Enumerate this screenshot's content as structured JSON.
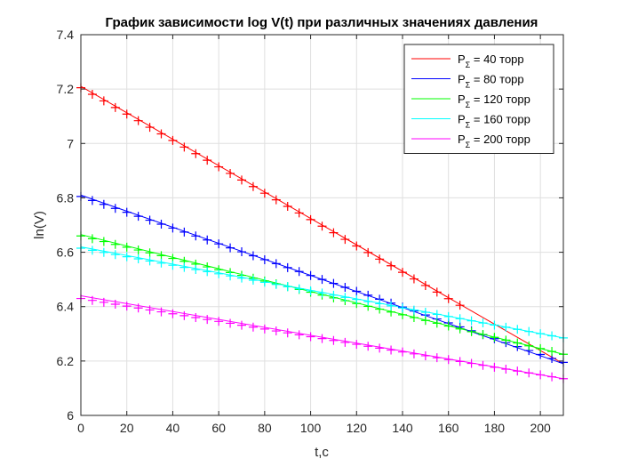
{
  "chart_data": {
    "type": "line",
    "title": "График зависимости log V(t) при различных значениях давления",
    "xlabel": "t,c",
    "ylabel": "ln(V)",
    "xlim": [
      0,
      210
    ],
    "ylim": [
      6,
      7.4
    ],
    "xticks": [
      "0",
      "20",
      "40",
      "60",
      "80",
      "100",
      "120",
      "140",
      "160",
      "180",
      "200"
    ],
    "yticks": [
      "6",
      "6.2",
      "6.4",
      "6.6",
      "6.8",
      "7",
      "7.2",
      "7.4"
    ],
    "grid": true,
    "legend_position": "top-right",
    "sample_interval": 5,
    "series": [
      {
        "name": "P",
        "subscript": "Σ",
        "value_text": " = 40 торр",
        "color": "#ff0000",
        "fit": {
          "x": [
            0,
            210
          ],
          "y": [
            7.21,
            6.19
          ]
        },
        "marker_x_max": 165,
        "marker_y_start": 7.205,
        "marker_y_end": 6.405
      },
      {
        "name": "P",
        "subscript": "Σ",
        "value_text": " = 80 торр",
        "color": "#0000ff",
        "fit": {
          "x": [
            0,
            210
          ],
          "y": [
            6.81,
            6.19
          ]
        },
        "marker_x_max": 210,
        "marker_y_start": 6.805,
        "marker_y_end": 6.195
      },
      {
        "name": "P",
        "subscript": "Σ",
        "value_text": " = 120 торр",
        "color": "#00ff00",
        "fit": {
          "x": [
            0,
            210
          ],
          "y": [
            6.665,
            6.225
          ]
        },
        "marker_x_max": 210,
        "marker_y_start": 6.66,
        "marker_y_end": 6.225
      },
      {
        "name": "P",
        "subscript": "Σ",
        "value_text": " = 160 торр",
        "color": "#00ffff",
        "fit": {
          "x": [
            0,
            210
          ],
          "y": [
            6.62,
            6.285
          ]
        },
        "marker_x_max": 210,
        "marker_y_start": 6.615,
        "marker_y_end": 6.285
      },
      {
        "name": "P",
        "subscript": "Σ",
        "value_text": " = 200 торр",
        "color": "#ff00ff",
        "fit": {
          "x": [
            0,
            210
          ],
          "y": [
            6.44,
            6.135
          ]
        },
        "marker_x_max": 210,
        "marker_y_start": 6.43,
        "marker_y_end": 6.135
      }
    ]
  }
}
